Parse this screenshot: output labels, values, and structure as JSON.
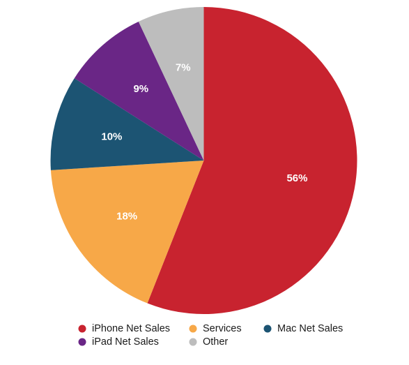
{
  "chart_data": {
    "type": "pie",
    "title": "",
    "slices": [
      {
        "label": "iPhone Net Sales",
        "value": 56,
        "display": "56%",
        "color": "#c8232f"
      },
      {
        "label": "Services",
        "value": 18,
        "display": "18%",
        "color": "#f7a848"
      },
      {
        "label": "Mac Net Sales",
        "value": 10,
        "display": "10%",
        "color": "#1c5473"
      },
      {
        "label": "iPad Net Sales",
        "value": 9,
        "display": "9%",
        "color": "#6a2686"
      },
      {
        "label": "Other",
        "value": 7,
        "display": "7%",
        "color": "#bdbdbd"
      }
    ],
    "start_angle_deg": 0,
    "direction": "clockwise",
    "legend_position": "bottom"
  }
}
